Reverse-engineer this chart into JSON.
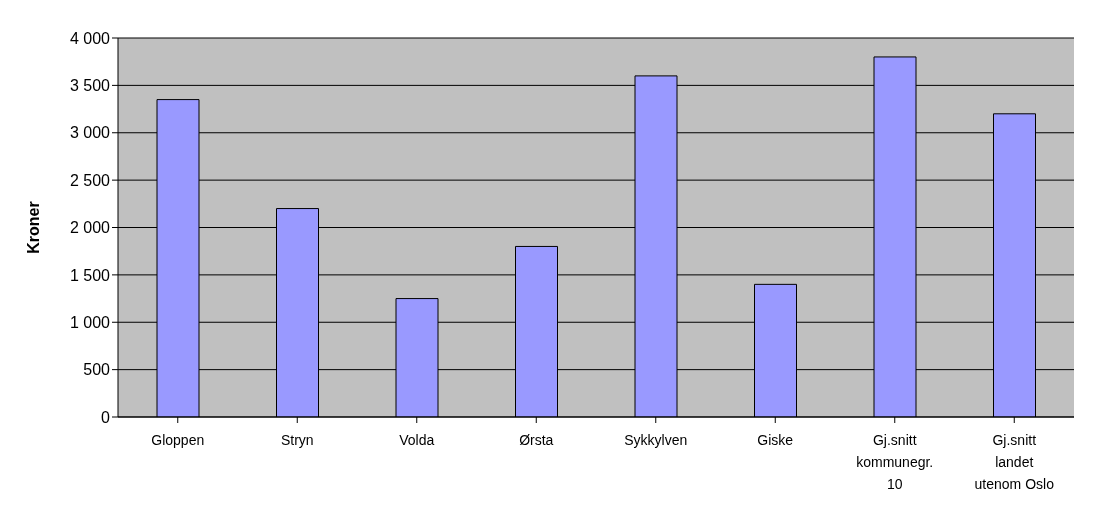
{
  "chart_data": {
    "type": "bar",
    "ylabel": "Kroner",
    "categories": [
      "Gloppen",
      "Stryn",
      "Volda",
      "Ørsta",
      "Sykkylven",
      "Giske",
      "Gj.snitt kommunegr. 10",
      "Gj.snitt landet utenom Oslo"
    ],
    "values": [
      3350,
      2200,
      1250,
      1800,
      3600,
      1400,
      3800,
      3200
    ],
    "color": "#9999ff",
    "ylim": [
      0,
      4000
    ],
    "yticks": [
      0,
      500,
      {
        "value": 1000,
        "label": "1 000"
      },
      {
        "value": 1500,
        "label": "1 500"
      },
      {
        "value": 2000,
        "label": "2 000"
      },
      {
        "value": 2500,
        "label": "2 500"
      },
      {
        "value": 3000,
        "label": "3 000"
      },
      {
        "value": 3500,
        "label": "3 500"
      },
      {
        "value": 4000,
        "label": "4 000"
      }
    ],
    "grid": "y"
  }
}
